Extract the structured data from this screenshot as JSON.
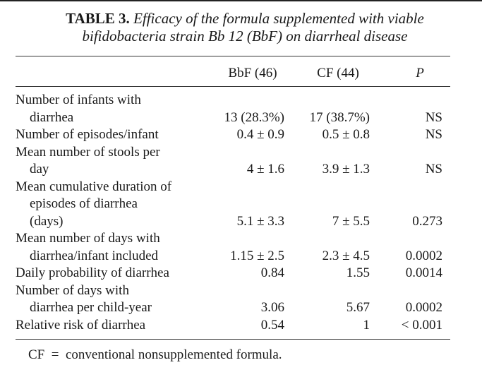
{
  "table": {
    "caption_label": "TABLE 3.",
    "caption_text_1": "Efficacy of the formula supplemented with viable",
    "caption_text_2": "bifidobacteria strain Bb 12 (BbF) on diarrheal disease",
    "columns": [
      "BbF (46)",
      "CF (44)",
      "P"
    ],
    "rows": [
      {
        "label": [
          "Number of infants with",
          "diarrhea"
        ],
        "values": [
          "13 (28.3%)",
          "17 (38.7%)",
          "NS"
        ]
      },
      {
        "label": [
          "Number of episodes/infant"
        ],
        "values": [
          "0.4 ± 0.9",
          "0.5 ± 0.8",
          "NS"
        ]
      },
      {
        "label": [
          "Mean number of stools per",
          "day"
        ],
        "values": [
          "4 ± 1.6",
          "3.9 ± 1.3",
          "NS"
        ]
      },
      {
        "label": [
          "Mean cumulative duration of",
          "episodes of diarrhea",
          "(days)"
        ],
        "values": [
          "5.1 ± 3.3",
          "7 ± 5.5",
          "0.273"
        ]
      },
      {
        "label": [
          "Mean number of days with",
          "diarrhea/infant included"
        ],
        "values": [
          "1.15 ± 2.5",
          "2.3 ± 4.5",
          "0.0002"
        ]
      },
      {
        "label": [
          "Daily probability of diarrhea"
        ],
        "values": [
          "0.84",
          "1.55",
          "0.0014"
        ]
      },
      {
        "label": [
          "Number of days with",
          "diarrhea per child-year"
        ],
        "values": [
          "3.06",
          "5.67",
          "0.0002"
        ]
      },
      {
        "label": [
          "Relative risk of diarrhea"
        ],
        "values": [
          "0.54",
          "1",
          "< 0.001"
        ]
      }
    ],
    "footnote": "CF  =  conventional nonsupplemented formula."
  }
}
